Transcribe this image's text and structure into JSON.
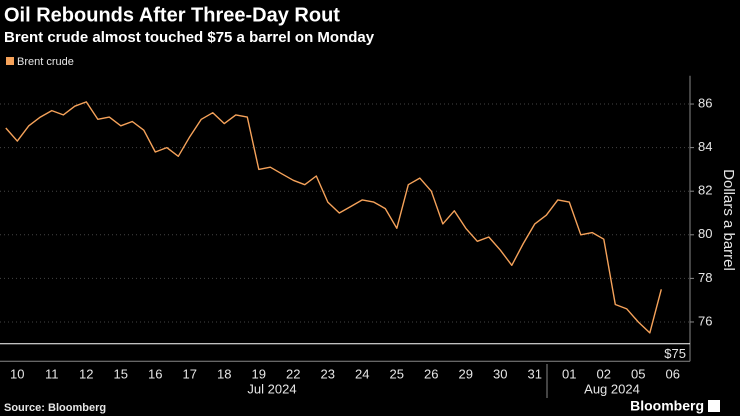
{
  "chart_data": {
    "type": "line",
    "title": "Oil Rebounds After Three-Day Rout",
    "subtitle": "Brent crude almost touched $75 a barrel on Monday",
    "y_axis_label": "Dollars a barrel",
    "categories": [
      null,
      "10",
      null,
      null,
      "11",
      null,
      null,
      "12",
      null,
      null,
      "15",
      null,
      null,
      "16",
      null,
      null,
      "17",
      null,
      null,
      "18",
      null,
      null,
      "19",
      null,
      null,
      "22",
      null,
      null,
      "23",
      null,
      null,
      "24",
      null,
      null,
      "25",
      null,
      null,
      "26",
      null,
      null,
      "29",
      null,
      null,
      "30",
      null,
      null,
      "31",
      null,
      null,
      "01",
      null,
      null,
      "02",
      null,
      null,
      "05",
      null,
      null,
      "06",
      null
    ],
    "x_group_labels": [
      "Jul 2024",
      "Aug 2024"
    ],
    "series": [
      {
        "name": "Brent crude",
        "color": "#f5a25a",
        "values": [
          84.9,
          84.3,
          85.0,
          85.4,
          85.7,
          85.5,
          85.9,
          86.1,
          85.3,
          85.4,
          85.0,
          85.2,
          84.8,
          83.8,
          84.0,
          83.6,
          84.5,
          85.3,
          85.6,
          85.1,
          85.5,
          85.4,
          83.0,
          83.1,
          82.8,
          82.5,
          82.3,
          82.7,
          81.5,
          81.0,
          81.3,
          81.6,
          81.5,
          81.2,
          80.3,
          82.3,
          82.6,
          82.0,
          80.5,
          81.1,
          80.3,
          79.7,
          79.9,
          79.3,
          78.6,
          79.6,
          80.5,
          80.9,
          81.6,
          81.5,
          80.0,
          80.1,
          79.8,
          76.8,
          76.6,
          76.0,
          75.5,
          77.5,
          null,
          null
        ]
      }
    ],
    "ylim": [
      74.2,
      87.3
    ],
    "yticks": [
      76,
      78,
      80,
      82,
      84,
      86
    ],
    "grid": true,
    "reference_line": {
      "value": 75,
      "label": "$75"
    },
    "source": "Source: Bloomberg",
    "logo": "Bloomberg"
  }
}
